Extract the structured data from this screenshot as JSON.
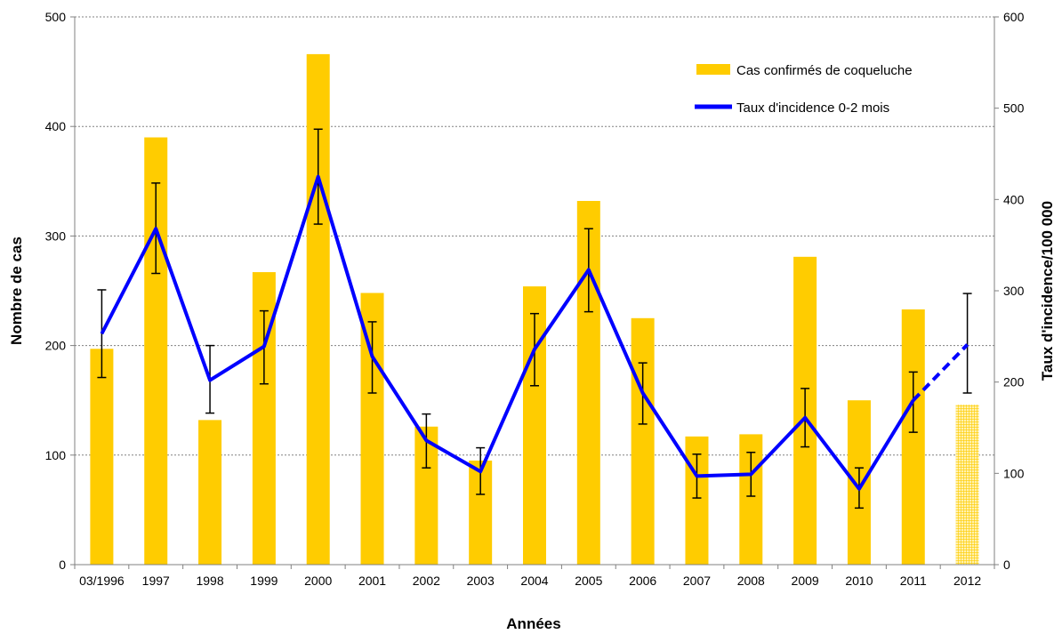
{
  "chart_data": {
    "type": "bar",
    "categories": [
      "03/1996",
      "1997",
      "1998",
      "1999",
      "2000",
      "2001",
      "2002",
      "2003",
      "2004",
      "2005",
      "2006",
      "2007",
      "2008",
      "2009",
      "2010",
      "2011",
      "2012"
    ],
    "xlabel": "Années",
    "ylabel": "Nombre de cas",
    "y2label": "Taux d'incidence/100 000",
    "ylim": [
      0,
      500
    ],
    "y2lim": [
      0,
      600
    ],
    "yticks": [
      0,
      100,
      200,
      300,
      400,
      500
    ],
    "y2ticks": [
      0,
      100,
      200,
      300,
      400,
      500,
      600
    ],
    "grid": true,
    "legend_position": "top-right",
    "colors": {
      "bars": "#FFCC00",
      "line": "#0000FF",
      "error_bars": "#000000",
      "grid": "#808080"
    },
    "series": [
      {
        "name": "Cas confirmés de coqueluche",
        "type": "bar",
        "axis": "left",
        "values": [
          197,
          390,
          132,
          267,
          466,
          248,
          126,
          95,
          254,
          332,
          225,
          117,
          119,
          281,
          150,
          233,
          146
        ],
        "hatched_last": true
      },
      {
        "name": "Taux d'incidence 0-2 mois",
        "type": "line",
        "axis": "right",
        "values": [
          253,
          368,
          202,
          239,
          425,
          228,
          136,
          102,
          236,
          323,
          188,
          97,
          99,
          161,
          83,
          180,
          241
        ],
        "error_low": [
          205,
          319,
          166,
          198,
          373,
          188,
          106,
          77,
          196,
          277,
          154,
          73,
          75,
          129,
          62,
          145,
          188
        ],
        "error_high": [
          301,
          418,
          240,
          278,
          477,
          266,
          165,
          128,
          275,
          368,
          221,
          121,
          123,
          193,
          106,
          211,
          297
        ],
        "dashed_last_segment": true
      }
    ]
  }
}
